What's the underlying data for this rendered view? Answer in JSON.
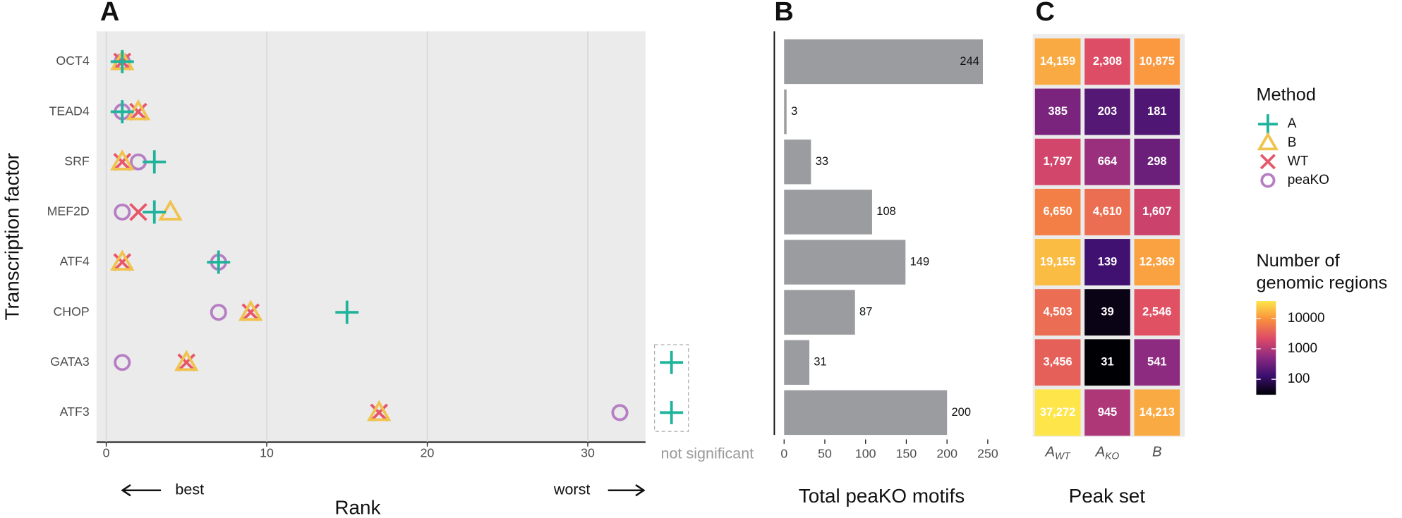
{
  "chart_data": [
    {
      "type": "scatter",
      "panel_label": "A",
      "categories": [
        "OCT4",
        "TEAD4",
        "SRF",
        "MEF2D",
        "ATF4",
        "CHOP",
        "GATA3",
        "ATF3"
      ],
      "series": [
        {
          "name": "A",
          "color": "#1fb39b",
          "marker": "plus",
          "values": [
            1,
            1,
            3,
            3,
            7,
            15,
            null,
            null
          ]
        },
        {
          "name": "B",
          "color": "#f0c24e",
          "marker": "triangle",
          "values": [
            1,
            2,
            1,
            4,
            1,
            9,
            5,
            17
          ]
        },
        {
          "name": "WT",
          "color": "#e8566a",
          "marker": "x",
          "values": [
            1,
            2,
            1,
            2,
            1,
            9,
            5,
            17
          ]
        },
        {
          "name": "peaKO",
          "color": "#b67fc3",
          "marker": "circle",
          "values": [
            1,
            1,
            2,
            1,
            7,
            7,
            1,
            32
          ]
        }
      ],
      "xlim": [
        -0.6,
        33.6
      ],
      "xticks": [
        0,
        10,
        20,
        30
      ],
      "grid": true,
      "xlabel": "Rank",
      "ylabel": "Transcription factor",
      "best_label": "best",
      "worst_label": "worst",
      "not_significant_label": "not significant",
      "legend_title": "Method"
    },
    {
      "type": "bar",
      "panel_label": "B",
      "color": "#9a9c9f",
      "values": [
        244,
        3,
        33,
        108,
        149,
        87,
        31,
        200
      ],
      "xlim": [
        -12,
        258
      ],
      "xticks": [
        0,
        50,
        100,
        150,
        200,
        250
      ],
      "xlabel": "Total peaKO motifs"
    },
    {
      "type": "heatmap",
      "panel_label": "C",
      "columns": [
        {
          "main": "A",
          "sub": "WT"
        },
        {
          "main": "A",
          "sub": "KO"
        },
        {
          "main": "B"
        }
      ],
      "values": [
        [
          14159,
          2308,
          10875
        ],
        [
          385,
          203,
          181
        ],
        [
          1797,
          664,
          298
        ],
        [
          6650,
          4610,
          1607
        ],
        [
          19155,
          139,
          12369
        ],
        [
          4503,
          39,
          2546
        ],
        [
          3456,
          31,
          541
        ],
        [
          37272,
          945,
          14213
        ]
      ],
      "value_labels": [
        [
          "14,159",
          "2,308",
          "10,875"
        ],
        [
          "385",
          "203",
          "181"
        ],
        [
          "1,797",
          "664",
          "298"
        ],
        [
          "6,650",
          "4,610",
          "1,607"
        ],
        [
          "19,155",
          "139",
          "12,369"
        ],
        [
          "4,503",
          "39",
          "2,546"
        ],
        [
          "3,456",
          "31",
          "541"
        ],
        [
          "37,272",
          "945",
          "14,213"
        ]
      ],
      "log_scale": true,
      "clim": [
        31,
        37272
      ],
      "cticks": [
        10000,
        1000,
        100
      ],
      "colormap": [
        "#000004",
        "#3b0f6f",
        "#8c2a81",
        "#dd4a68",
        "#f98e3e",
        "#fde54a"
      ],
      "xlabel": "Peak set",
      "legend_title": [
        "Number of",
        "genomic regions"
      ]
    }
  ]
}
